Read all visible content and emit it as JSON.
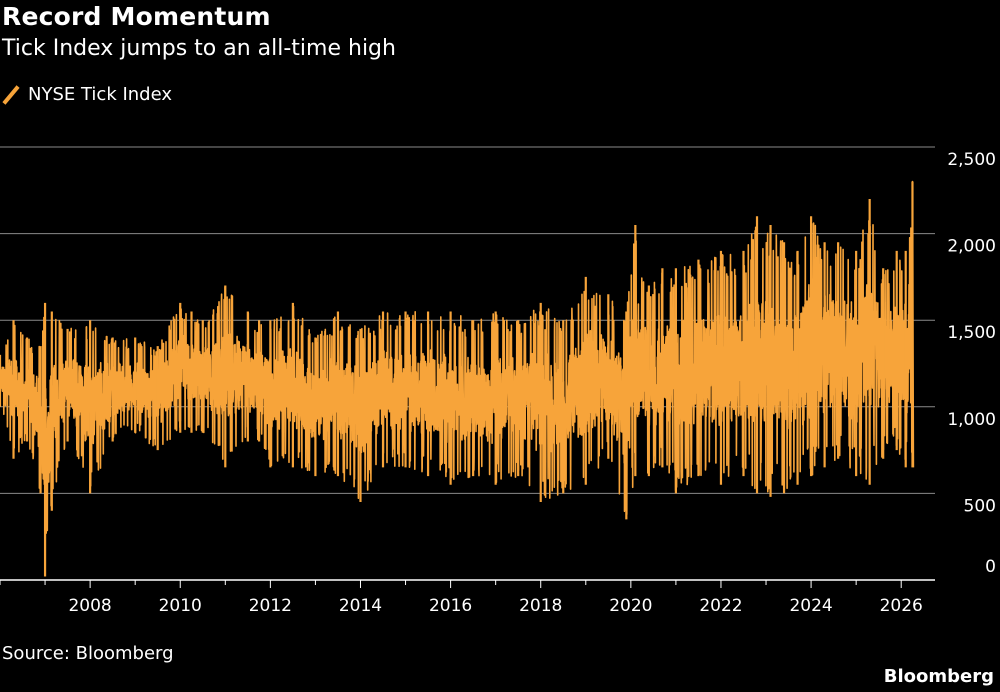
{
  "header": {
    "title": "Record Momentum",
    "subtitle": "Tick Index jumps to an all-time high"
  },
  "legend": {
    "label": "NYSE Tick Index"
  },
  "footer": {
    "source": "Source: Bloomberg",
    "brand": "Bloomberg"
  },
  "colors": {
    "series": "#f7a43a",
    "grid": "#8a8a8a",
    "background": "#000000",
    "text": "#ffffff"
  },
  "chart_data": {
    "type": "line",
    "title": "Record Momentum",
    "subtitle": "Tick Index jumps to an all-time high",
    "xlabel": "",
    "ylabel": "",
    "xlim": [
      2006.0,
      2026.75
    ],
    "ylim": [
      0,
      2500
    ],
    "y_ticks": [
      0,
      500,
      1000,
      1500,
      2000,
      2500
    ],
    "y_tick_labels": [
      "0",
      "500",
      "1,000",
      "1,500",
      "2,000",
      "2,500"
    ],
    "x_ticks": [
      2008,
      2010,
      2012,
      2014,
      2016,
      2018,
      2020,
      2022,
      2024,
      2026
    ],
    "x_tick_labels": [
      "2008",
      "2010",
      "2012",
      "2014",
      "2016",
      "2018",
      "2020",
      "2022",
      "2024",
      "2026"
    ],
    "legend_position": "top-left",
    "series": [
      {
        "name": "NYSE Tick Index",
        "note": "Daily NYSE Tick Index readings (dense daily series shown as a high/low envelope with approximate values read from the chart)",
        "x": [
          2006.0,
          2006.3,
          2006.6,
          2006.9,
          2007.0,
          2007.15,
          2007.5,
          2008.0,
          2008.5,
          2009.0,
          2009.5,
          2010.0,
          2010.25,
          2010.5,
          2011.0,
          2011.5,
          2011.75,
          2012.0,
          2012.5,
          2013.0,
          2013.5,
          2014.0,
          2014.5,
          2015.0,
          2015.5,
          2016.0,
          2016.5,
          2017.0,
          2017.5,
          2018.0,
          2018.5,
          2019.0,
          2019.5,
          2019.9,
          2020.1,
          2020.4,
          2020.7,
          2021.0,
          2021.5,
          2022.0,
          2022.5,
          2022.8,
          2023.1,
          2023.4,
          2023.7,
          2024.0,
          2024.3,
          2024.6,
          2025.0,
          2025.3,
          2025.6,
          2025.9,
          2026.1,
          2026.25
        ],
        "high": [
          1300,
          1500,
          1400,
          1350,
          1600,
          1550,
          1450,
          1500,
          1400,
          1400,
          1350,
          1600,
          1550,
          1500,
          1700,
          1550,
          1500,
          1500,
          1600,
          1400,
          1550,
          1450,
          1550,
          1550,
          1550,
          1550,
          1500,
          1550,
          1500,
          1600,
          1500,
          1750,
          1650,
          1550,
          2050,
          1700,
          1800,
          1800,
          1850,
          1900,
          1900,
          2100,
          2050,
          1950,
          1900,
          2100,
          1950,
          1950,
          1900,
          2200,
          1800,
          1900,
          1900,
          2300
        ],
        "low": [
          1000,
          700,
          800,
          500,
          20,
          400,
          800,
          500,
          800,
          850,
          750,
          850,
          850,
          850,
          650,
          800,
          800,
          650,
          650,
          600,
          600,
          450,
          650,
          650,
          600,
          550,
          600,
          550,
          600,
          450,
          500,
          550,
          700,
          350,
          600,
          600,
          650,
          500,
          600,
          550,
          600,
          500,
          480,
          500,
          550,
          600,
          650,
          700,
          600,
          550,
          700,
          750,
          650,
          650
        ]
      }
    ]
  }
}
